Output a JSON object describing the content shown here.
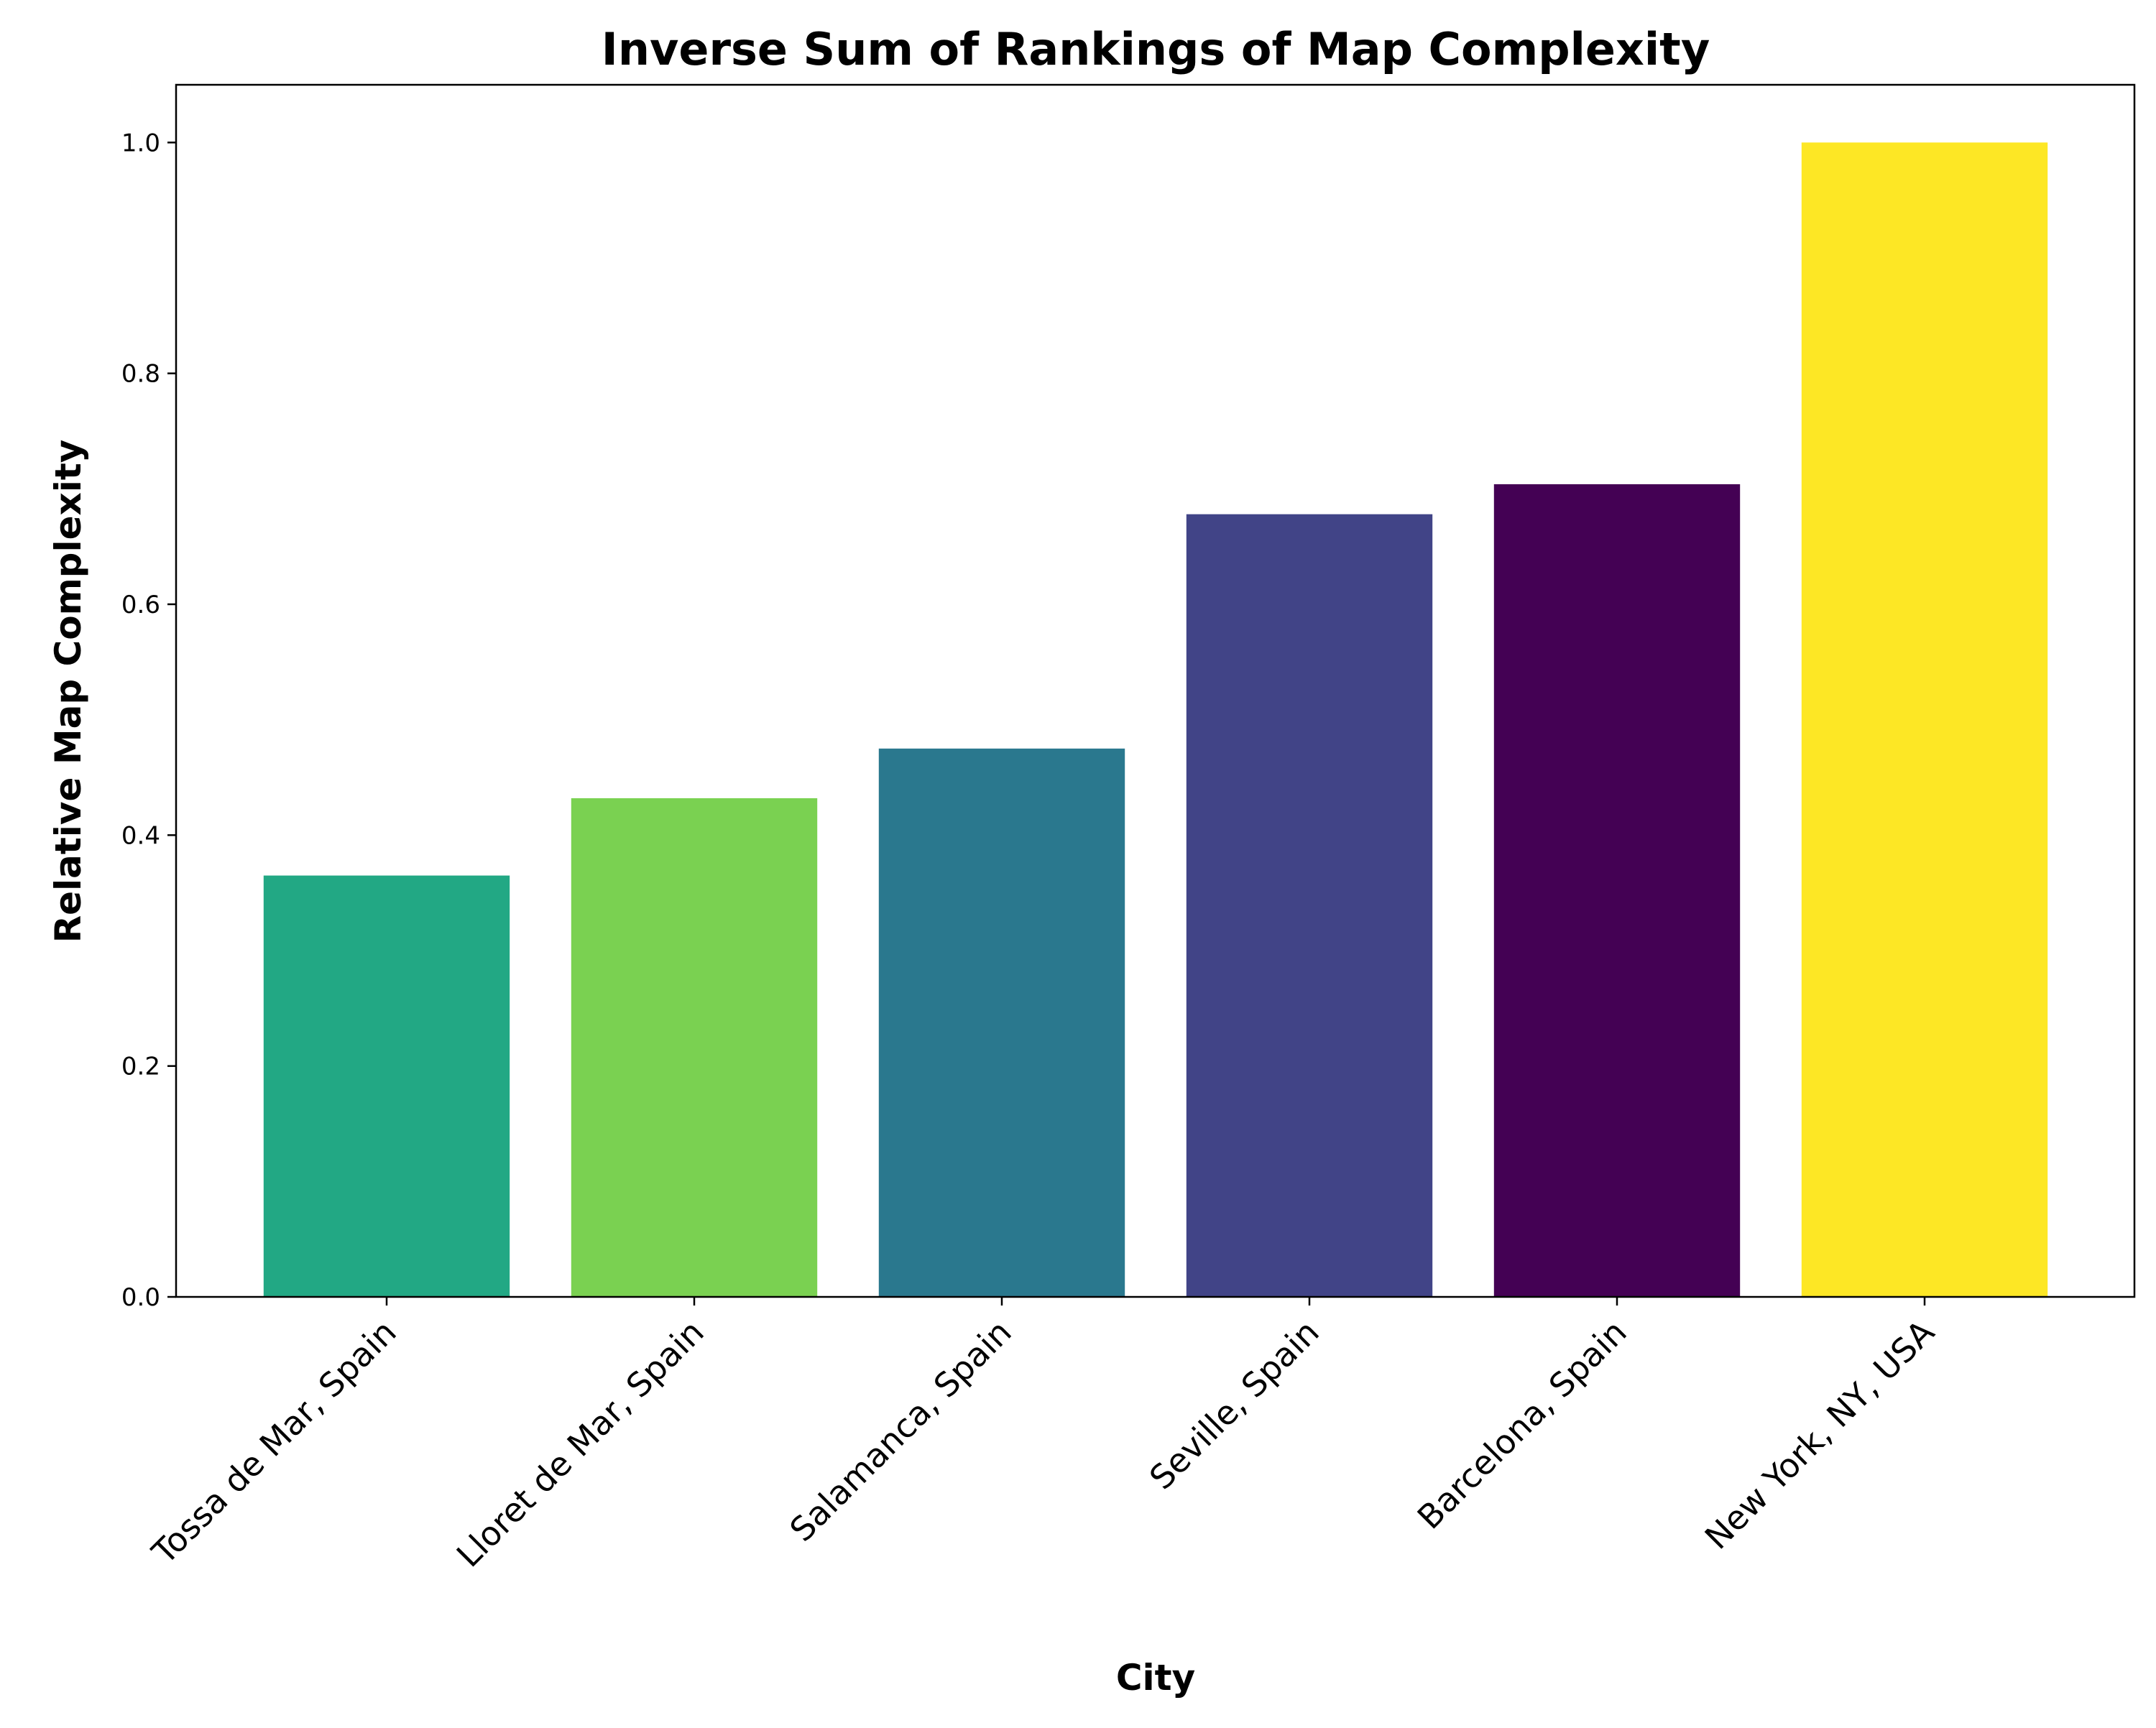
{
  "chart_data": {
    "type": "bar",
    "title": "Inverse Sum of Rankings of Map Complexity",
    "xlabel": "City",
    "ylabel": "Relative Map Complexity",
    "categories": [
      "Tossa de Mar, Spain",
      "Lloret de Mar, Spain",
      "Salamanca, Spain",
      "Seville, Spain",
      "Barcelona, Spain",
      "New York, NY, USA"
    ],
    "values": [
      0.365,
      0.432,
      0.475,
      0.678,
      0.704,
      1.0
    ],
    "colors": [
      "#22a884",
      "#7ad151",
      "#2a788e",
      "#414487",
      "#440154",
      "#fde725"
    ],
    "ylim": [
      0,
      1.05
    ],
    "yticks": [
      0.0,
      0.2,
      0.4,
      0.6,
      0.8,
      1.0
    ],
    "ytick_labels": [
      "0.0",
      "0.2",
      "0.4",
      "0.6",
      "0.8",
      "1.0"
    ],
    "grid": false,
    "legend": "none"
  }
}
